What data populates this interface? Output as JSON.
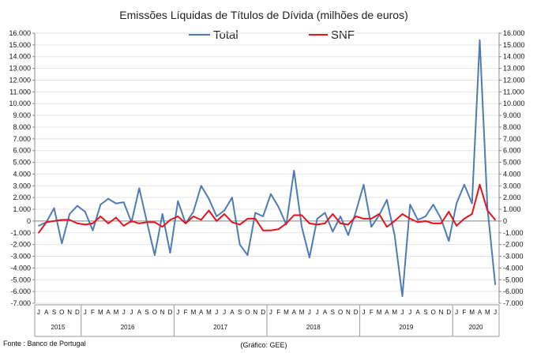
{
  "chart_data": {
    "type": "line",
    "title": "Emissões Líquidas de Títulos de Dívida (milhões de euros)",
    "source_note": "Fonte : Banco de Portugal",
    "chart_note": "(Gráfico: GEE)",
    "ylim": [
      -7000,
      16000
    ],
    "ytick_step": 1000,
    "ytick_labels": [
      "-7.000",
      "-6.000",
      "-5.000",
      "-4.000",
      "-3.000",
      "-2.000",
      "-1.000",
      "0",
      "1.000",
      "2.000",
      "3.000",
      "4.000",
      "5.000",
      "6.000",
      "7.000",
      "8.000",
      "9.000",
      "10.000",
      "11.000",
      "12.000",
      "13.000",
      "14.000",
      "15.000",
      "16.000"
    ],
    "grid": "horizontal",
    "legend_position": "top",
    "x": [
      "J",
      "A",
      "S",
      "O",
      "N",
      "D",
      "J",
      "F",
      "M",
      "A",
      "M",
      "J",
      "J",
      "A",
      "S",
      "O",
      "N",
      "D",
      "J",
      "F",
      "M",
      "A",
      "M",
      "J",
      "J",
      "A",
      "S",
      "O",
      "N",
      "D",
      "J",
      "F",
      "M",
      "A",
      "M",
      "J",
      "J",
      "A",
      "S",
      "O",
      "N",
      "D",
      "J",
      "F",
      "M",
      "A",
      "M",
      "J",
      "J",
      "A",
      "S",
      "O",
      "N",
      "D",
      "J",
      "F",
      "M",
      "A",
      "M",
      "J"
    ],
    "year_groups": [
      {
        "label": "2015",
        "count": 6
      },
      {
        "label": "2016",
        "count": 12
      },
      {
        "label": "2017",
        "count": 12
      },
      {
        "label": "2018",
        "count": 12
      },
      {
        "label": "2019",
        "count": 12
      },
      {
        "label": "2020",
        "count": 6
      }
    ],
    "series": [
      {
        "name": "Total",
        "color": "#4f7bb5",
        "values": [
          -400,
          -100,
          1100,
          -1900,
          600,
          1300,
          800,
          -800,
          1400,
          1900,
          1500,
          1600,
          -100,
          2800,
          -100,
          -2900,
          600,
          -2700,
          1700,
          -200,
          800,
          3000,
          1900,
          400,
          900,
          2000,
          -2000,
          -2900,
          700,
          400,
          2300,
          1200,
          -300,
          4300,
          -500,
          -3100,
          200,
          700,
          -900,
          400,
          -1200,
          800,
          3100,
          -500,
          500,
          1800,
          -1200,
          -6400,
          1400,
          100,
          400,
          1400,
          200,
          -1700,
          1500,
          3100,
          1500,
          15400,
          1100,
          -5400
        ]
      },
      {
        "name": "SNF",
        "color": "#e3141b",
        "values": [
          -1000,
          -100,
          0,
          100,
          100,
          -200,
          -300,
          -200,
          400,
          -200,
          300,
          -400,
          0,
          -200,
          -100,
          -100,
          -500,
          100,
          400,
          -200,
          400,
          100,
          900,
          0,
          600,
          -100,
          -300,
          200,
          200,
          -800,
          -800,
          -700,
          -200,
          500,
          500,
          -200,
          -300,
          -200,
          600,
          -200,
          -300,
          400,
          200,
          200,
          600,
          -500,
          0,
          600,
          200,
          -100,
          0,
          -200,
          -200,
          800,
          -400,
          200,
          600,
          3100,
          900,
          100
        ]
      }
    ]
  }
}
